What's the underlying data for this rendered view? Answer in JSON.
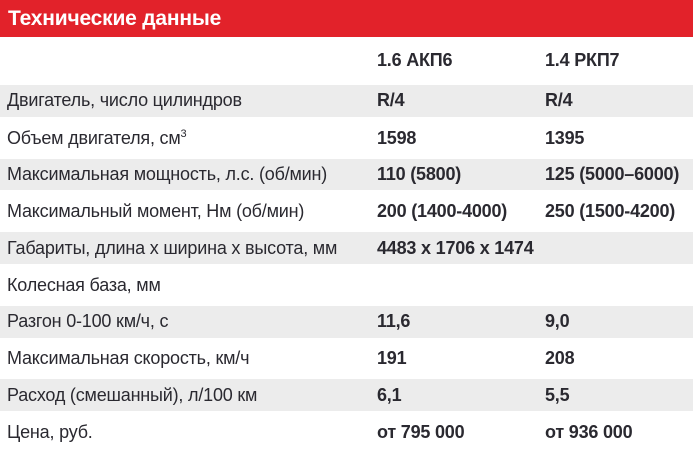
{
  "title": "Технические данные",
  "colors": {
    "accent_red": "#e2222a",
    "stripe_gray": "#ececec",
    "text_dark": "#2a2930",
    "title_text": "#ffffff"
  },
  "table": {
    "columns": [
      "1.6 АКП6",
      "1.4 РКП7"
    ],
    "rows": [
      {
        "label": "Двигатель, число цилиндров",
        "val1": "R/4",
        "val2": "R/4"
      },
      {
        "label": "Объем двигателя, см",
        "label_sup": "3",
        "val1": "1598",
        "val2": "1395"
      },
      {
        "label": "Максимальная мощность, л.с. (об/мин)",
        "val1": "110 (5800)",
        "val2": "125 (5000–6000)"
      },
      {
        "label": "Максимальный момент, Нм (об/мин)",
        "val1": "200 (1400-4000)",
        "val2": "250 (1500-4200)"
      },
      {
        "label": "Габариты, длина х ширина х высота, мм",
        "val1": "4483 х 1706 х 1474",
        "val2": ""
      },
      {
        "label": "Колесная база, мм",
        "val1": "",
        "val2": ""
      },
      {
        "label": "Разгон 0-100 км/ч, с",
        "val1": "11,6",
        "val2": "9,0"
      },
      {
        "label": "Максимальная скорость, км/ч",
        "val1": "191",
        "val2": "208"
      },
      {
        "label": "Расход (смешанный), л/100 км",
        "val1": "6,1",
        "val2": "5,5"
      },
      {
        "label": "Цена, руб.",
        "val1": "от 795 000",
        "val2": "от 936 000"
      }
    ]
  }
}
